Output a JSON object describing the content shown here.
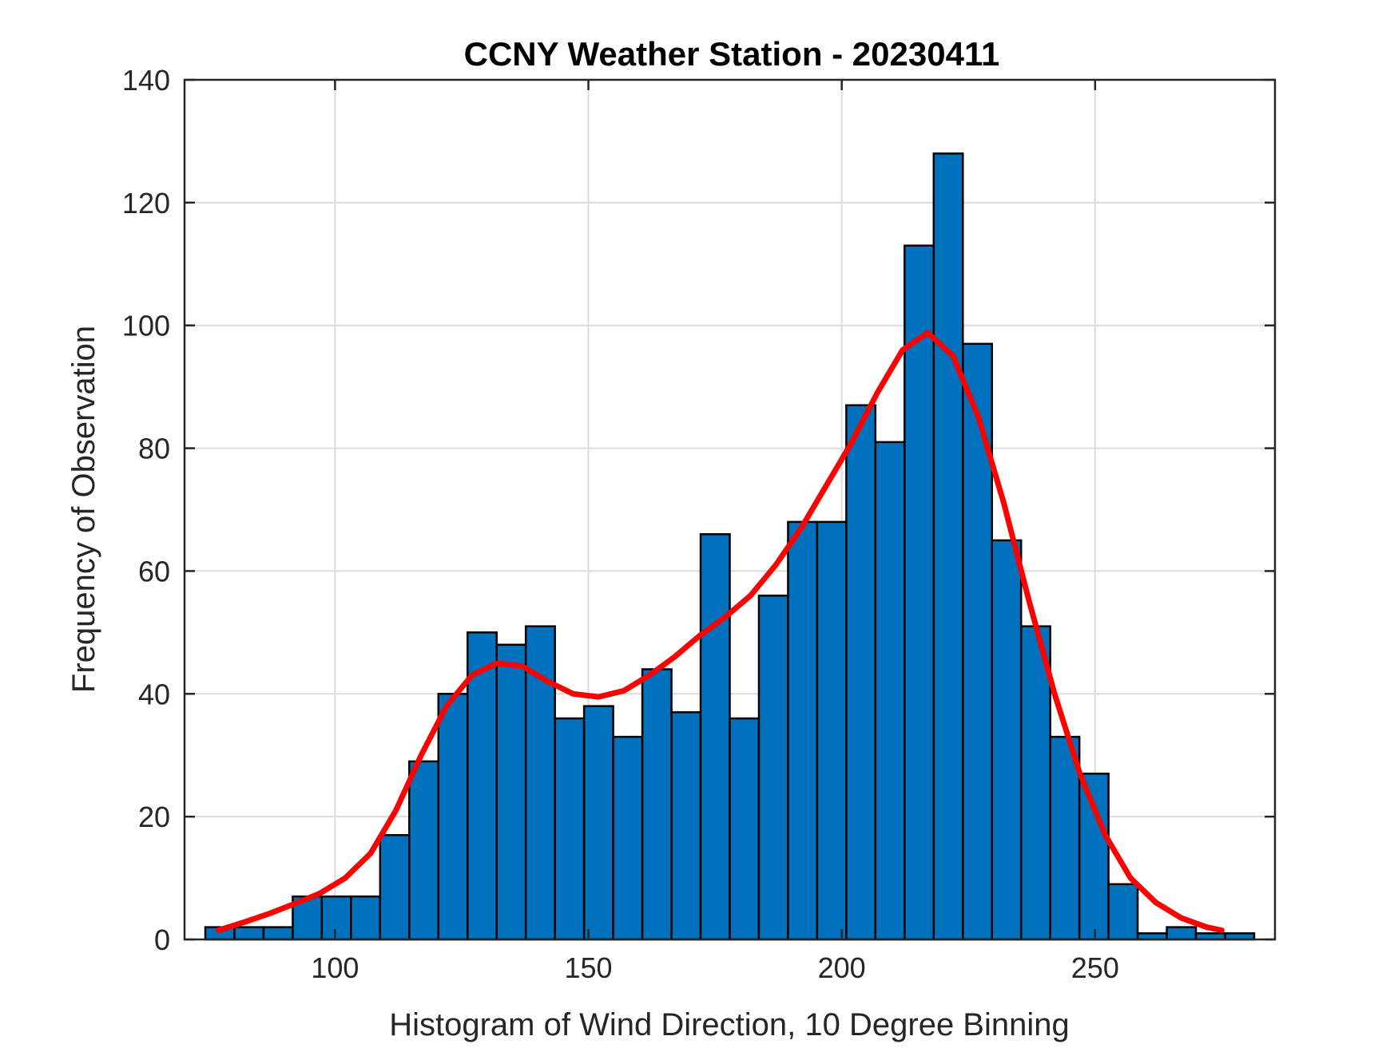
{
  "chart_data": {
    "type": "bar",
    "title": "CCNY Weather Station - 20230411",
    "xlabel": "Histogram of Wind Direction, 10 Degree Binning",
    "ylabel": "Frequency of Observation",
    "xlim": [
      70.3,
      285.5
    ],
    "ylim": [
      0,
      140
    ],
    "xticks": [
      100,
      150,
      200,
      250
    ],
    "yticks": [
      0,
      20,
      40,
      60,
      80,
      100,
      120,
      140
    ],
    "grid": true,
    "bar_color": "#0072BD",
    "bar_edge_color": "#000000",
    "bin_width": 5.75,
    "bin_edges_start": 74.4,
    "values": [
      2,
      2,
      2,
      7,
      7,
      7,
      17,
      29,
      40,
      50,
      48,
      51,
      36,
      38,
      33,
      44,
      37,
      66,
      36,
      56,
      68,
      68,
      87,
      81,
      113,
      128,
      97,
      65,
      51,
      33,
      27,
      9,
      1,
      2,
      1,
      1
    ],
    "density_curve": {
      "color": "#FF0000",
      "x": [
        77,
        82,
        87,
        92,
        97,
        102,
        107,
        112,
        117,
        122,
        127,
        132,
        137,
        142,
        147,
        152,
        157,
        162,
        167,
        172,
        177,
        182,
        187,
        192,
        197,
        202,
        207,
        212,
        217,
        222,
        227,
        232,
        237,
        242,
        247,
        252,
        257,
        262,
        267,
        272,
        275
      ],
      "y": [
        1.5,
        2.8,
        4.2,
        5.8,
        7.5,
        10,
        14,
        21,
        30,
        38,
        43,
        45,
        44.5,
        42,
        40,
        39.5,
        40.5,
        43,
        46,
        49.5,
        52.5,
        56,
        61,
        67,
        74,
        81,
        89,
        96,
        98.8,
        95,
        85,
        71,
        55,
        40,
        27,
        17,
        10,
        6,
        3.5,
        2,
        1.5
      ]
    }
  }
}
